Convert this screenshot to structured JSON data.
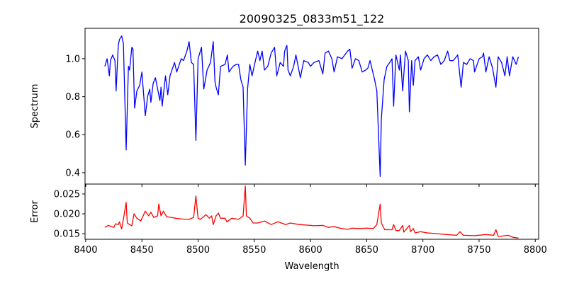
{
  "chart_data": [
    {
      "type": "line",
      "title": "20090325_0833m51_122",
      "xlabel": "",
      "ylabel": "Spectrum",
      "xlim": [
        8399.4,
        8803
      ],
      "ylim": [
        0.34,
        1.16
      ],
      "xticks": [
        8400,
        8450,
        8500,
        8550,
        8600,
        8650,
        8700,
        8750,
        8800
      ],
      "yticks": [
        "0.4",
        "0.6",
        "0.8",
        "1.0"
      ],
      "grid": false,
      "color": "#0000ff",
      "x": [
        8417,
        8419,
        8421,
        8422,
        8424,
        8426,
        8427,
        8429,
        8430,
        8432,
        8433.5,
        8436,
        8438,
        8439,
        8441,
        8442,
        8443.5,
        8445.5,
        8448,
        8450,
        8453,
        8455,
        8457,
        8458,
        8460,
        8462,
        8466,
        8467,
        8468,
        8471,
        8473,
        8475,
        8479,
        8481,
        8485,
        8487,
        8490,
        8492,
        8494,
        8496,
        8498,
        8500,
        8503,
        8505,
        8508,
        8511,
        8513.5,
        8515,
        8516,
        8518,
        8520,
        8524,
        8526,
        8527.5,
        8531,
        8534,
        8536,
        8538,
        8540,
        8542,
        8544,
        8546,
        8548,
        8551,
        8553,
        8555,
        8557,
        8559,
        8562,
        8565,
        8568,
        8570,
        8573,
        8576,
        8577,
        8579,
        8580,
        8582,
        8585,
        8587,
        8591,
        8594,
        8598,
        8600,
        8603,
        8607.5,
        8611,
        8613,
        8616,
        8619,
        8621,
        8624,
        8628,
        8633,
        8635,
        8637,
        8640,
        8643,
        8646,
        8649,
        8651,
        8653,
        8655,
        8657,
        8659,
        8662,
        8663,
        8665.5,
        8668,
        8670.5,
        8672.5,
        8674,
        8676,
        8679,
        8680,
        8682,
        8684.5,
        8687,
        8688,
        8690,
        8691.5,
        8693,
        8696,
        8698,
        8701,
        8704,
        8707,
        8710,
        8713,
        8716,
        8719,
        8722,
        8724,
        8727,
        8731,
        8734,
        8736,
        8739,
        8742,
        8745,
        8746,
        8750,
        8753,
        8754,
        8756,
        8759,
        8762,
        8765,
        8767,
        8770,
        8773,
        8775,
        8777,
        8780,
        8783,
        8785
      ],
      "y": [
        0.96,
        1.0,
        0.91,
        0.99,
        1.02,
        0.99,
        0.83,
        1.07,
        1.1,
        1.12,
        1.08,
        0.52,
        0.96,
        0.94,
        1.06,
        1.05,
        0.74,
        0.83,
        0.86,
        0.93,
        0.7,
        0.8,
        0.84,
        0.77,
        0.87,
        0.9,
        0.78,
        0.85,
        0.75,
        0.91,
        0.81,
        0.91,
        0.98,
        0.93,
        1.0,
        0.99,
        1.04,
        1.09,
        0.98,
        0.97,
        0.57,
        1.0,
        1.06,
        0.84,
        0.94,
        0.98,
        1.09,
        0.88,
        0.85,
        0.81,
        0.96,
        0.97,
        1.02,
        0.93,
        0.96,
        0.97,
        0.97,
        0.89,
        0.85,
        0.44,
        0.84,
        0.97,
        0.91,
        0.99,
        1.04,
        0.99,
        1.04,
        0.94,
        0.96,
        1.03,
        1.06,
        0.91,
        0.98,
        0.96,
        1.04,
        1.07,
        0.94,
        0.91,
        0.96,
        1.02,
        0.9,
        0.99,
        0.98,
        0.96,
        0.98,
        0.99,
        0.92,
        1.03,
        1.04,
        1.0,
        0.93,
        1.01,
        1.0,
        1.04,
        1.05,
        0.95,
        1.0,
        0.99,
        0.93,
        0.94,
        0.95,
        0.99,
        0.94,
        0.89,
        0.83,
        0.38,
        0.68,
        0.89,
        0.96,
        0.98,
        1.0,
        0.75,
        1.02,
        0.94,
        1.02,
        0.83,
        1.04,
        0.99,
        0.72,
        0.99,
        0.86,
        0.99,
        1.01,
        0.94,
        1.0,
        1.02,
        0.99,
        1.01,
        1.02,
        0.97,
        0.99,
        1.04,
        0.99,
        0.99,
        1.02,
        0.85,
        0.98,
        0.97,
        1.0,
        0.99,
        0.93,
        1.0,
        1.01,
        1.03,
        0.93,
        1.01,
        0.95,
        0.85,
        1.01,
        0.98,
        0.91,
        1.01,
        0.91,
        1.01,
        0.97,
        1.01
      ]
    },
    {
      "type": "line",
      "title": "",
      "xlabel": "Wavelength",
      "ylabel": "Error",
      "xlim": [
        8399.4,
        8803
      ],
      "ylim": [
        0.0136,
        0.0275
      ],
      "xticks": [
        "8400",
        "8450",
        "8500",
        "8550",
        "8600",
        "8650",
        "8700",
        "8750",
        "8800"
      ],
      "yticks": [
        "0.015",
        "0.020",
        "0.025"
      ],
      "grid": false,
      "color": "#ff0000",
      "x": [
        8417,
        8420,
        8425,
        8426.5,
        8429,
        8430,
        8432,
        8434,
        8436,
        8437,
        8439,
        8441,
        8443,
        8445.5,
        8449,
        8453,
        8456,
        8458,
        8460.5,
        8464,
        8465,
        8467,
        8469,
        8472,
        8476,
        8480,
        8486,
        8492,
        8496,
        8498,
        8500,
        8502,
        8507,
        8510,
        8512,
        8513.5,
        8516,
        8518,
        8520,
        8524,
        8525.5,
        8530,
        8536,
        8540,
        8542,
        8543,
        8546,
        8549,
        8553,
        8559,
        8565,
        8571,
        8578,
        8582,
        8590,
        8600,
        8603,
        8611,
        8616,
        8621,
        8626,
        8633,
        8637,
        8643,
        8650,
        8656,
        8659,
        8662,
        8663,
        8666,
        8669,
        8672.5,
        8674,
        8676,
        8679,
        8682,
        8683,
        8688,
        8689,
        8691.5,
        8693,
        8698,
        8704,
        8713,
        8721,
        8730,
        8733,
        8736,
        8746,
        8756,
        8763,
        8765,
        8767,
        8776,
        8780,
        8785
      ],
      "y": [
        0.0166,
        0.0171,
        0.0166,
        0.0175,
        0.0173,
        0.018,
        0.0162,
        0.0195,
        0.0229,
        0.0177,
        0.0173,
        0.017,
        0.02,
        0.0189,
        0.0182,
        0.0207,
        0.0195,
        0.0204,
        0.0191,
        0.0195,
        0.0225,
        0.0195,
        0.0207,
        0.0193,
        0.0191,
        0.0189,
        0.0187,
        0.0186,
        0.0191,
        0.0245,
        0.0189,
        0.0186,
        0.0198,
        0.0189,
        0.0195,
        0.0173,
        0.0195,
        0.0202,
        0.0189,
        0.0189,
        0.018,
        0.0189,
        0.0186,
        0.0195,
        0.027,
        0.0195,
        0.0189,
        0.0177,
        0.0177,
        0.0182,
        0.0173,
        0.018,
        0.0173,
        0.0177,
        0.0173,
        0.0171,
        0.017,
        0.0171,
        0.0166,
        0.0168,
        0.0164,
        0.0161,
        0.0164,
        0.0163,
        0.0164,
        0.0163,
        0.0173,
        0.0225,
        0.0177,
        0.016,
        0.016,
        0.016,
        0.0173,
        0.0158,
        0.0158,
        0.0171,
        0.0154,
        0.0171,
        0.0155,
        0.0163,
        0.0152,
        0.0155,
        0.0152,
        0.015,
        0.0148,
        0.0146,
        0.0155,
        0.0146,
        0.0145,
        0.0148,
        0.0146,
        0.016,
        0.0143,
        0.0146,
        0.0141,
        0.0139
      ]
    }
  ]
}
